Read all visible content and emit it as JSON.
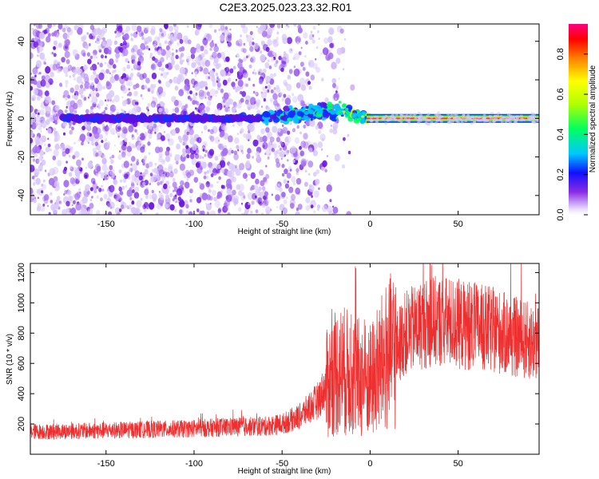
{
  "title": "C2E3.2025.023.23.32.R01",
  "colors": {
    "snr_line": "#ee2f2f",
    "scatter_faint": "#d8c8f8",
    "scatter_mid": "#a66ff0",
    "scatter_dark": "#6a10e0",
    "band_core": "#f03a6a"
  },
  "chart_data": [
    {
      "type": "heatmap",
      "xlabel": "Height of straight line (km)",
      "ylabel": "Frequency (Hz)",
      "xlim": [
        -193,
        96
      ],
      "ylim": [
        -50,
        49
      ],
      "xticks": [
        -150,
        -100,
        -50,
        0,
        50
      ],
      "xtick_labels": [
        "-150",
        "-100",
        "-50",
        "0",
        "50"
      ],
      "yticks": [
        -40,
        -20,
        0,
        20,
        40
      ],
      "ytick_labels": [
        "-40",
        "-20",
        "0",
        "20",
        "40"
      ],
      "grid": false,
      "colorbar": {
        "label": "Normalized spectral amplitude",
        "range": [
          0,
          0.95
        ],
        "ticks": [
          0,
          0.2,
          0.4,
          0.6,
          0.8
        ],
        "tick_labels": [
          "0.0",
          "0.2",
          "0.4",
          "0.6",
          "0.8"
        ],
        "colormap": "rainbow"
      },
      "band": {
        "center_frequency": 0,
        "segments": [
          {
            "x_range": [
              -193,
              -60
            ],
            "amplitude": 0.1
          },
          {
            "x_range": [
              -60,
              -20
            ],
            "amplitude": 0.3
          },
          {
            "x_range": [
              -20,
              0
            ],
            "amplitude": 0.45
          },
          {
            "x_range": [
              0,
              96
            ],
            "amplitude": 0.9
          }
        ]
      }
    },
    {
      "type": "line",
      "xlabel": "Height of straight line (km)",
      "ylabel": "SNR (10 * v/v)",
      "xlim": [
        -193,
        96
      ],
      "ylim": [
        0,
        1260
      ],
      "xticks": [
        -150,
        -100,
        -50,
        0,
        50
      ],
      "xtick_labels": [
        "-150",
        "-100",
        "-50",
        "0",
        "50"
      ],
      "yticks": [
        200,
        400,
        600,
        800,
        1000,
        1200
      ],
      "ytick_labels": [
        "200",
        "400",
        "600",
        "800",
        "1000",
        "1200"
      ],
      "grid": false,
      "series": [
        {
          "x": [
            -193,
            -180,
            -160,
            -140,
            -120,
            -100,
            -80,
            -60,
            -50,
            -40,
            -30,
            -25,
            -20,
            -15,
            -10,
            -5,
            0,
            5,
            10,
            15,
            20,
            30,
            40,
            50,
            60,
            70,
            80,
            96
          ],
          "y": [
            150,
            150,
            155,
            160,
            165,
            170,
            180,
            185,
            200,
            250,
            350,
            450,
            550,
            550,
            520,
            500,
            480,
            560,
            650,
            700,
            800,
            860,
            880,
            860,
            840,
            820,
            780,
            730
          ]
        }
      ]
    }
  ]
}
